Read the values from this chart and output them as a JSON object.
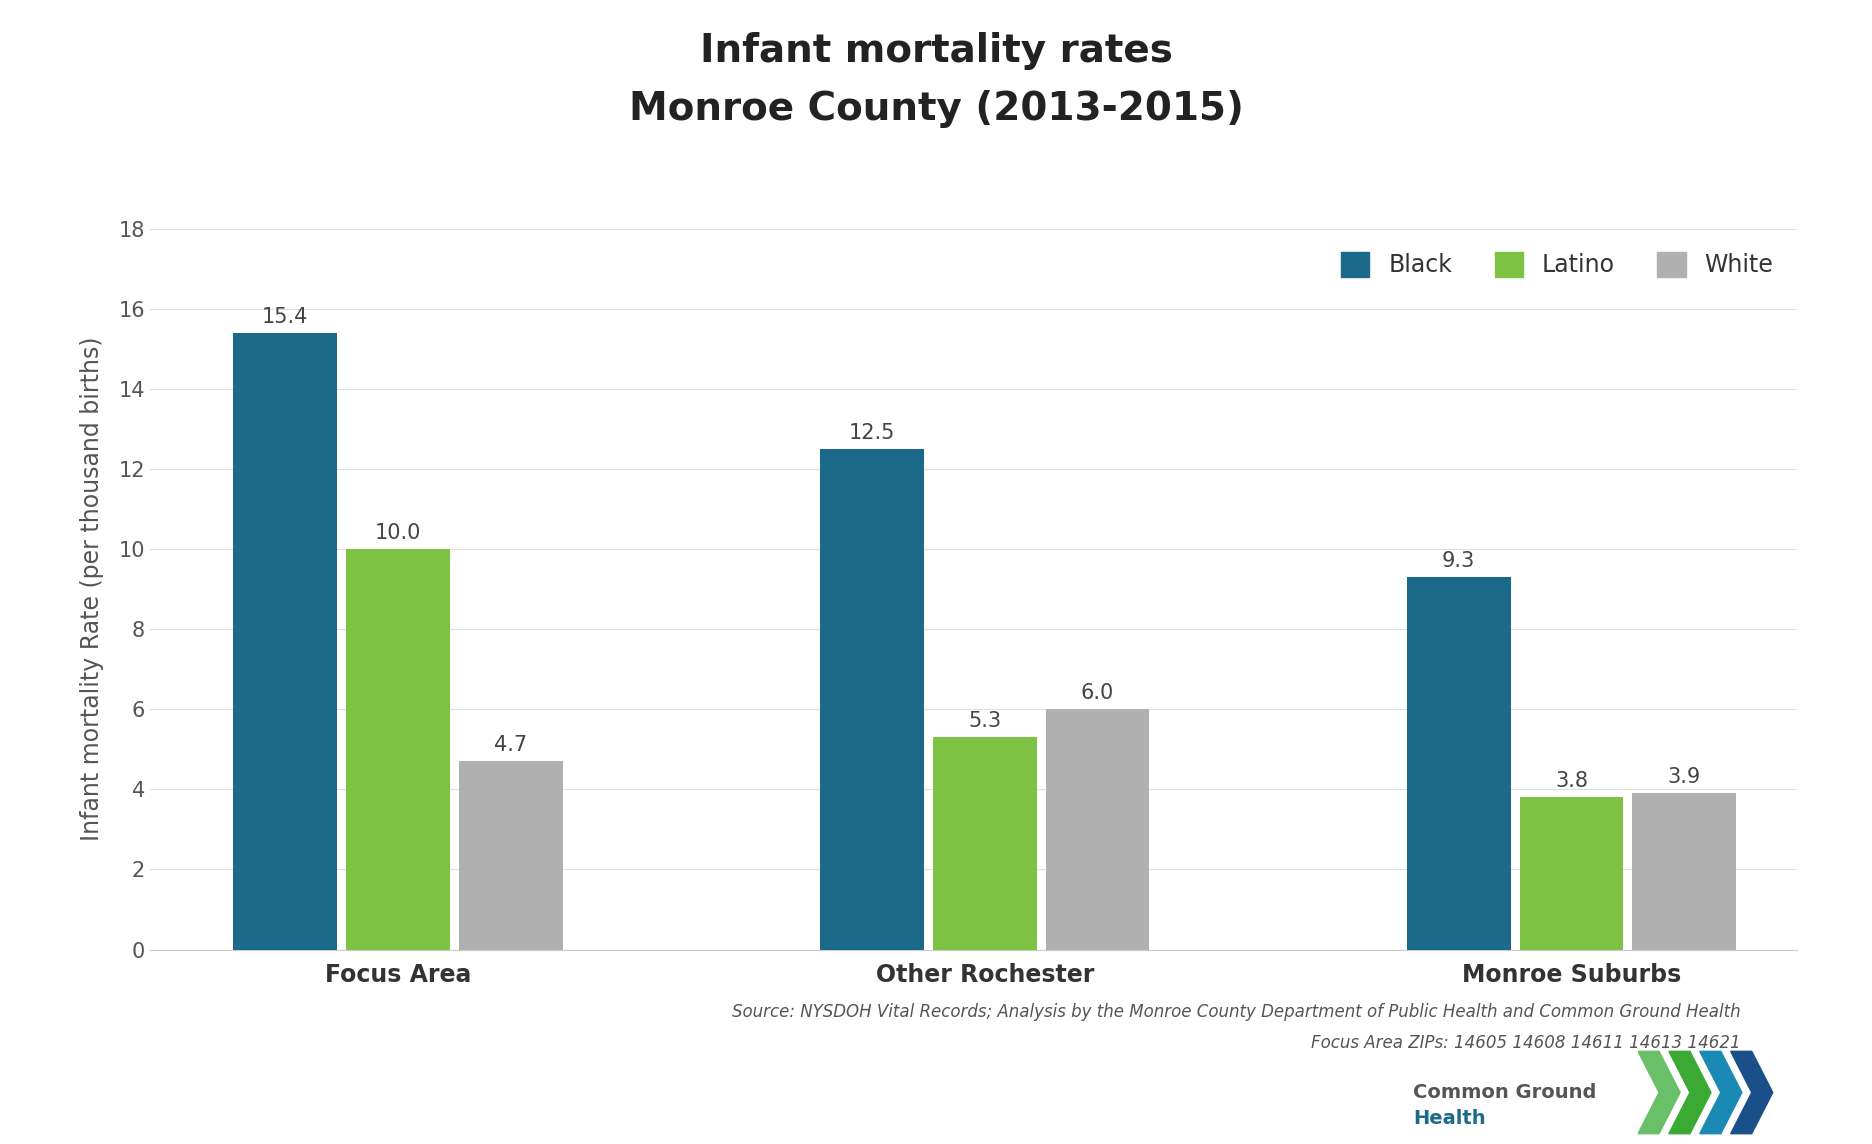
{
  "title_line1": "Infant mortality rates",
  "title_line2": "Monroe County (2013-2015)",
  "categories": [
    "Focus Area",
    "Other Rochester",
    "Monroe Suburbs"
  ],
  "groups": [
    "Black",
    "Latino",
    "White"
  ],
  "values": [
    [
      15.4,
      10.0,
      4.7
    ],
    [
      12.5,
      5.3,
      6.0
    ],
    [
      9.3,
      3.8,
      3.9
    ]
  ],
  "colors": [
    "#1b6a8a",
    "#7dc242",
    "#b0b0b0"
  ],
  "ylabel": "Infant mortality Rate (per thousand births)",
  "ylim": [
    0,
    18
  ],
  "yticks": [
    0,
    2,
    4,
    6,
    8,
    10,
    12,
    14,
    16,
    18
  ],
  "bar_width": 0.25,
  "source_line1": "Source: NYSDOH Vital Records; Analysis by the Monroe County Department of Public Health and Common Ground Health",
  "source_line2": "Focus Area ZIPs: 14605 14608 14611 14613 14621",
  "background_color": "#ffffff",
  "grid_color": "#e0e0e0",
  "title_fontsize": 28,
  "label_fontsize": 17,
  "tick_fontsize": 15,
  "legend_fontsize": 17,
  "source_fontsize": 12,
  "bar_label_fontsize": 15,
  "logo_colors_chevron": [
    "#6abf69",
    "#3aaa35",
    "#1a7a4a"
  ],
  "logo_colors_arrow": [
    "#5bb8d4",
    "#0e7ea8",
    "#1a3d6e"
  ]
}
